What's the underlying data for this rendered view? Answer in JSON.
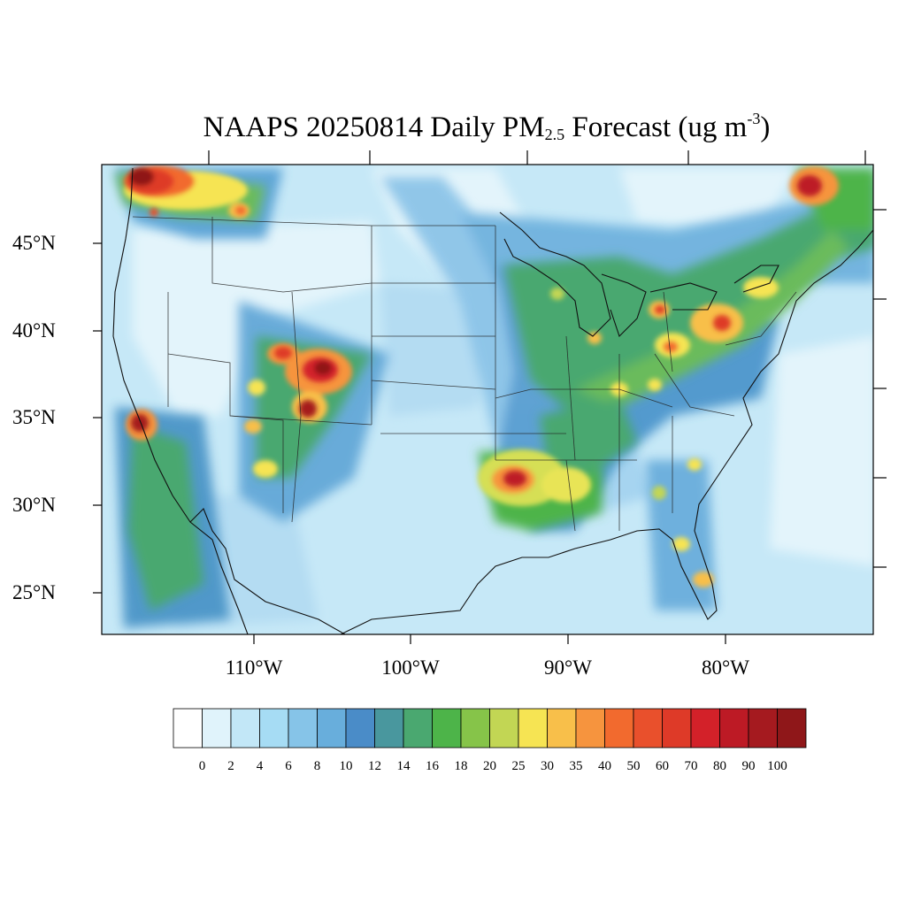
{
  "title": {
    "prefix": "NAAPS 20250814 Daily PM",
    "sub": "2.5",
    "middle": " Forecast (ug m",
    "sup": "-3",
    "suffix": ")"
  },
  "lat_labels": [
    "45°N",
    "40°N",
    "35°N",
    "30°N",
    "25°N"
  ],
  "lon_labels": [
    "110°W",
    "100°W",
    "90°W",
    "80°W"
  ],
  "colorbar": {
    "colors": [
      "#ffffff",
      "#e0f3fb",
      "#c2e7f7",
      "#a6dcf4",
      "#86c4e8",
      "#68aedc",
      "#4a8cc8",
      "#49979e",
      "#4aa870",
      "#4db449",
      "#86c449",
      "#c2d654",
      "#f6e453",
      "#f8bf4a",
      "#f6943e",
      "#f26a2e",
      "#e9502c",
      "#de3a28",
      "#d32129",
      "#bd1a25",
      "#a51a1f",
      "#8f1719"
    ],
    "labels": [
      "0",
      "2",
      "4",
      "6",
      "8",
      "10",
      "12",
      "14",
      "16",
      "18",
      "20",
      "25",
      "30",
      "35",
      "40",
      "50",
      "60",
      "70",
      "80",
      "90",
      "100"
    ]
  },
  "map": {
    "background": "#c9e9f7"
  }
}
